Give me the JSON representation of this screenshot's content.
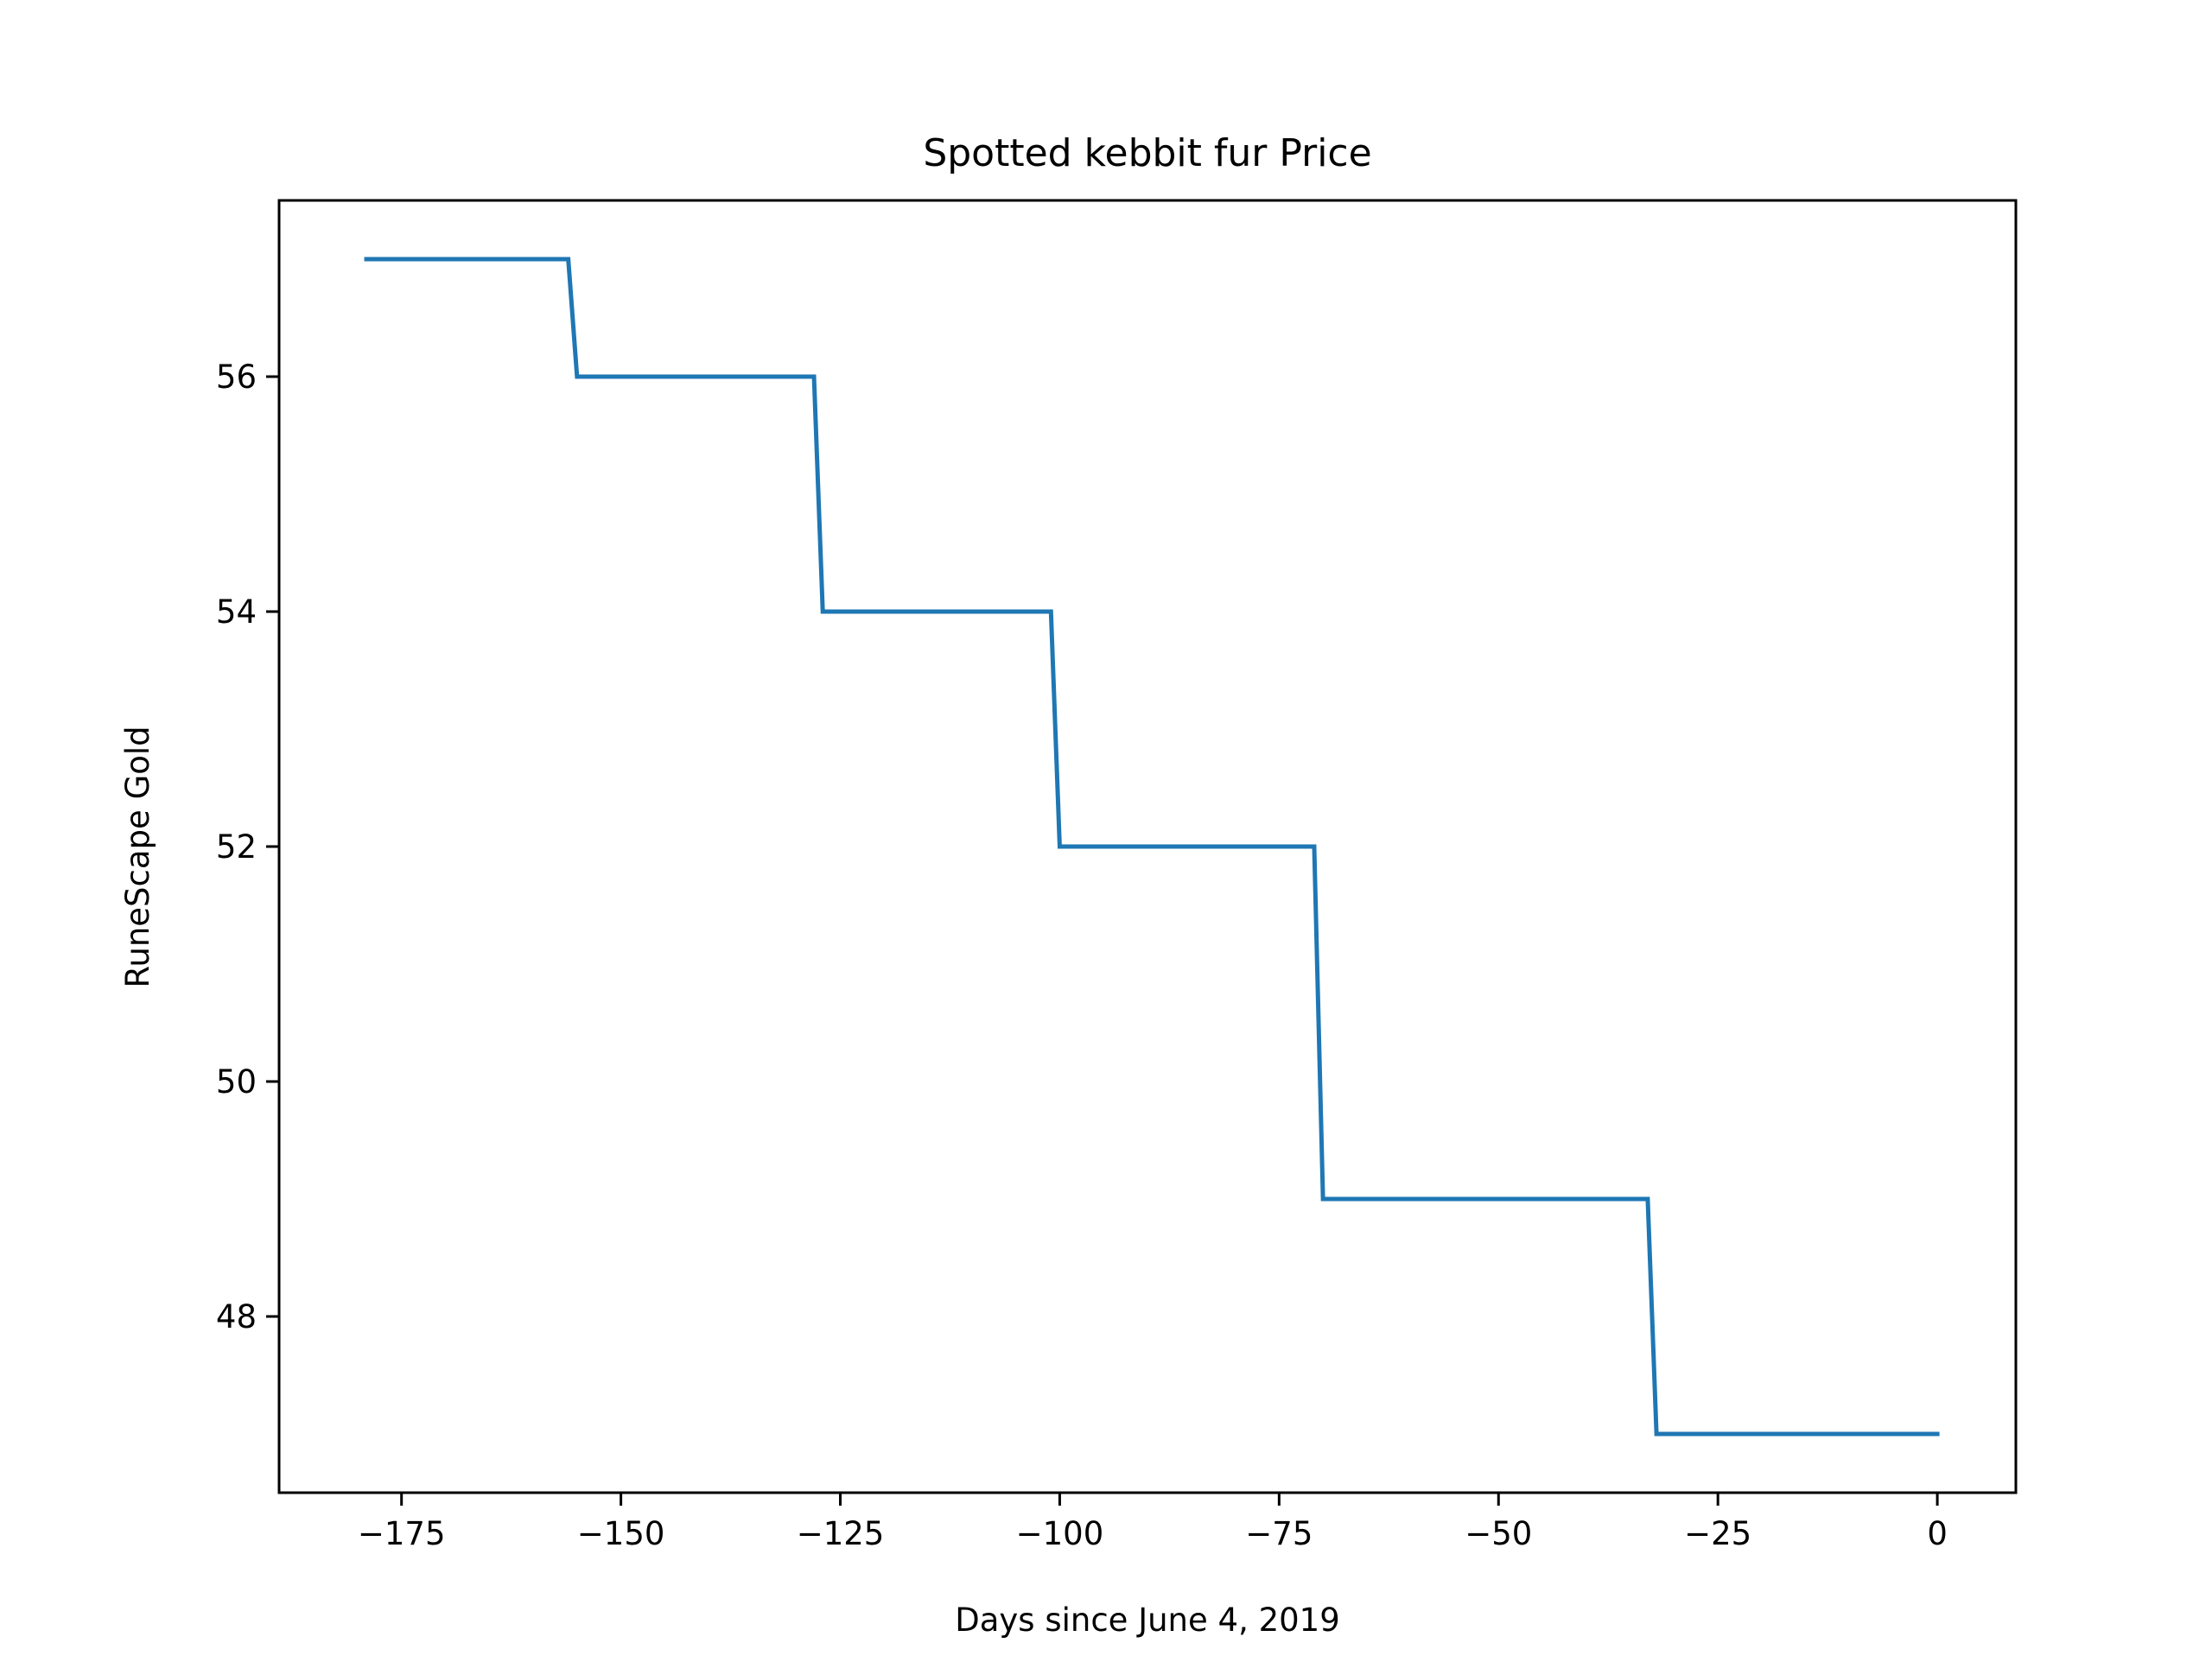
{
  "chart_data": {
    "type": "line",
    "title": "Spotted kebbit fur Price",
    "xlabel": "Days since June 4, 2019",
    "ylabel": "RuneScape Gold",
    "xlim": [
      -188.95,
      8.95
    ],
    "ylim": [
      46.5,
      57.5
    ],
    "xticks": [
      -175,
      -150,
      -125,
      -100,
      -75,
      -50,
      -25,
      0
    ],
    "xtick_labels": [
      "−175",
      "−150",
      "−125",
      "−100",
      "−75",
      "−50",
      "−25",
      "0"
    ],
    "yticks": [
      48,
      50,
      52,
      54,
      56
    ],
    "ytick_labels": [
      "48",
      "50",
      "52",
      "54",
      "56"
    ],
    "grid": false,
    "series": [
      {
        "name": "Spotted kebbit fur",
        "color": "#1f77b4",
        "x": [
          -179,
          -156,
          -155,
          -128,
          -127,
          -101,
          -100,
          -71,
          -70,
          -33,
          -32,
          0
        ],
        "y": [
          57,
          57,
          56,
          56,
          54,
          54,
          52,
          52,
          49,
          49,
          47,
          47
        ]
      }
    ]
  }
}
